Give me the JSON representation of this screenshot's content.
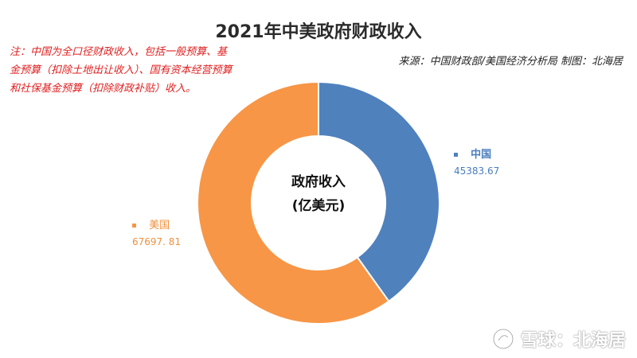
{
  "title": "2021年中美政府财政收入",
  "note": "注：中国为全口径财政收入，包括一般预算、基金预算（扣除土地出让收入）、国有资本经营预算和社保基金预算（扣除财政补贴）收入。",
  "source": "来源：中国财政部/美国经济分析局  制图：北海居",
  "center_label": {
    "line1": "政府收入",
    "line2": "(亿美元)"
  },
  "watermark": "雪球：北海居",
  "colors": {
    "china": "#4f81bd",
    "usa": "#f79646",
    "note_text": "#e02020"
  },
  "chart_data": {
    "type": "pie",
    "variant": "donut",
    "title": "2021年中美政府财政收入",
    "unit": "亿美元",
    "series": [
      {
        "name": "中国",
        "label": "中国",
        "value": 45383.67,
        "value_text": "45383.67"
      },
      {
        "name": "美国",
        "label": "美国",
        "value": 67697.81,
        "value_text": "67697. 81"
      }
    ],
    "start_angle_deg": 0,
    "direction": "clockwise",
    "legend": "data-labels-outside"
  }
}
